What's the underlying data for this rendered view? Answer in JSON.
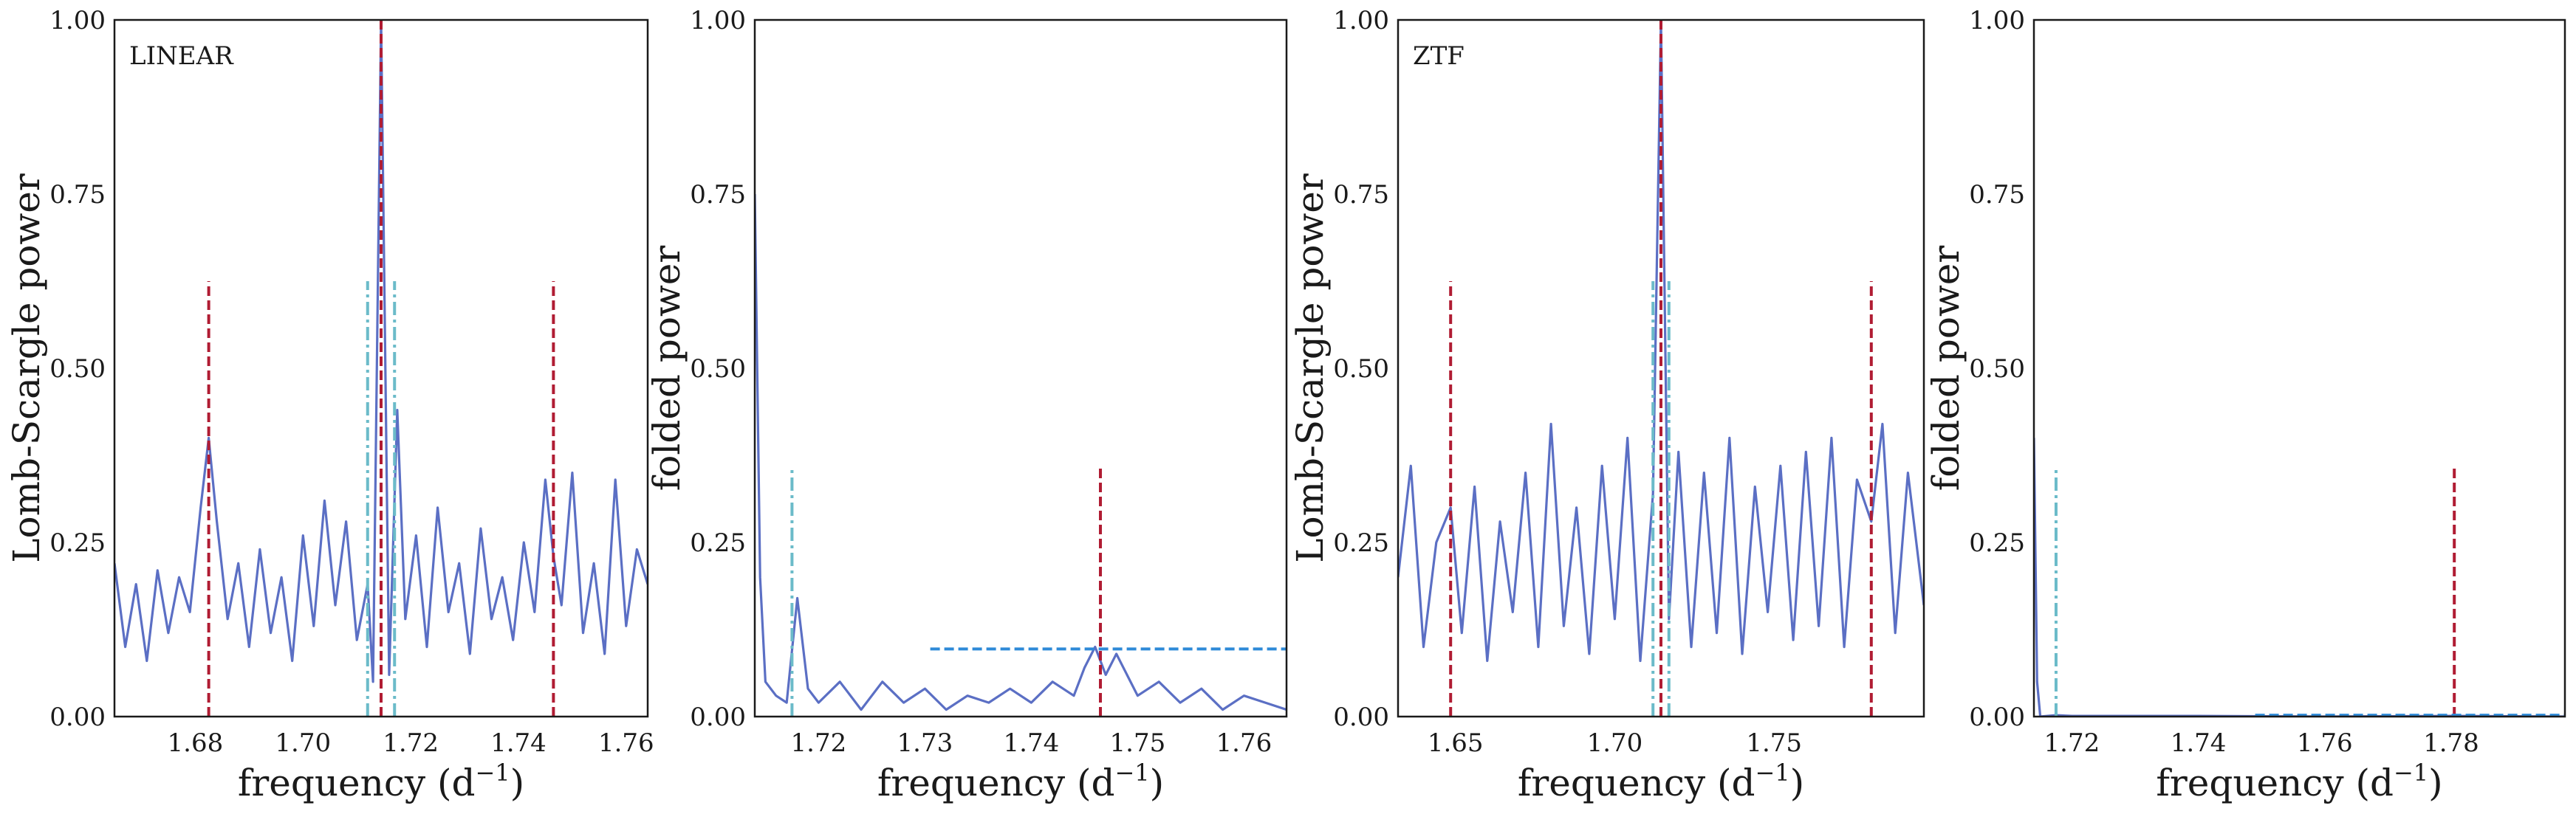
{
  "chart_data": [
    {
      "type": "line",
      "annotation": "LINEAR",
      "xlabel": "frequency (d",
      "xlabel_sup": "−1",
      "xlabel_end": ")",
      "ylabel": "Lomb-Scargle power",
      "xlim": [
        1.665,
        1.764
      ],
      "ylim": [
        0,
        1
      ],
      "xticks": [
        1.68,
        1.7,
        1.72,
        1.74,
        1.76
      ],
      "xtick_labels": [
        "1.68",
        "1.70",
        "1.72",
        "1.74",
        "1.76"
      ],
      "yticks": [
        0,
        0.25,
        0.5,
        0.75,
        1.0
      ],
      "ytick_labels": [
        "0.00",
        "0.25",
        "0.50",
        "0.75",
        "1.00"
      ],
      "series": [
        {
          "color": "#5b6fc4",
          "x": [
            1.665,
            1.667,
            1.669,
            1.671,
            1.673,
            1.675,
            1.677,
            1.679,
            1.681,
            1.6825,
            1.684,
            1.686,
            1.688,
            1.69,
            1.692,
            1.694,
            1.696,
            1.698,
            1.7,
            1.702,
            1.704,
            1.706,
            1.708,
            1.71,
            1.712,
            1.713,
            1.7145,
            1.716,
            1.7175,
            1.719,
            1.721,
            1.723,
            1.725,
            1.727,
            1.729,
            1.731,
            1.733,
            1.735,
            1.737,
            1.739,
            1.741,
            1.743,
            1.745,
            1.7465,
            1.748,
            1.75,
            1.752,
            1.754,
            1.756,
            1.758,
            1.76,
            1.762,
            1.764
          ],
          "y": [
            0.22,
            0.1,
            0.19,
            0.08,
            0.21,
            0.12,
            0.2,
            0.15,
            0.3,
            0.4,
            0.28,
            0.14,
            0.22,
            0.1,
            0.24,
            0.12,
            0.2,
            0.08,
            0.26,
            0.13,
            0.31,
            0.16,
            0.28,
            0.11,
            0.19,
            0.05,
            1.0,
            0.06,
            0.44,
            0.14,
            0.26,
            0.1,
            0.3,
            0.15,
            0.22,
            0.09,
            0.27,
            0.14,
            0.2,
            0.11,
            0.25,
            0.15,
            0.34,
            0.23,
            0.16,
            0.35,
            0.12,
            0.22,
            0.09,
            0.34,
            0.13,
            0.24,
            0.19
          ]
        }
      ],
      "vlines": [
        {
          "x": 1.6825,
          "ymax": 0.625,
          "color": "#b01c33",
          "style": "dashed"
        },
        {
          "x": 1.7145,
          "ymax": 1.0,
          "color": "#b01c33",
          "style": "dashed"
        },
        {
          "x": 1.7465,
          "ymax": 0.625,
          "color": "#b01c33",
          "style": "dashed"
        },
        {
          "x": 1.712,
          "ymax": 0.625,
          "color": "#6bbbc9",
          "style": "dashdot"
        },
        {
          "x": 1.717,
          "ymax": 0.625,
          "color": "#6bbbc9",
          "style": "dashdot"
        }
      ],
      "hlines": []
    },
    {
      "type": "line",
      "annotation": "",
      "xlabel": "frequency (d",
      "xlabel_sup": "−1",
      "xlabel_end": ")",
      "ylabel": "folded power",
      "xlim": [
        1.714,
        1.764
      ],
      "ylim": [
        0,
        1
      ],
      "xticks": [
        1.72,
        1.73,
        1.74,
        1.75,
        1.76
      ],
      "xtick_labels": [
        "1.72",
        "1.73",
        "1.74",
        "1.75",
        "1.76"
      ],
      "yticks": [
        0,
        0.25,
        0.5,
        0.75,
        1.0
      ],
      "ytick_labels": [
        "0.00",
        "0.25",
        "0.50",
        "0.75",
        "1.00"
      ],
      "series": [
        {
          "color": "#5b6fc4",
          "x": [
            1.714,
            1.7145,
            1.715,
            1.716,
            1.717,
            1.718,
            1.719,
            1.72,
            1.722,
            1.724,
            1.726,
            1.728,
            1.73,
            1.732,
            1.734,
            1.736,
            1.738,
            1.74,
            1.742,
            1.744,
            1.745,
            1.746,
            1.747,
            1.748,
            1.75,
            1.752,
            1.754,
            1.756,
            1.758,
            1.76,
            1.762,
            1.764
          ],
          "y": [
            0.75,
            0.2,
            0.05,
            0.03,
            0.02,
            0.17,
            0.04,
            0.02,
            0.05,
            0.01,
            0.05,
            0.02,
            0.04,
            0.01,
            0.03,
            0.02,
            0.04,
            0.02,
            0.05,
            0.03,
            0.07,
            0.1,
            0.06,
            0.09,
            0.03,
            0.05,
            0.02,
            0.04,
            0.01,
            0.03,
            0.02,
            0.01
          ]
        }
      ],
      "vlines": [
        {
          "x": 1.7465,
          "ymax": 0.36,
          "color": "#b01c33",
          "style": "dashed"
        },
        {
          "x": 1.7175,
          "ymax": 0.36,
          "color": "#6bbbc9",
          "style": "dashdot"
        }
      ],
      "hlines": [
        {
          "y": 0.097,
          "xmin": 1.7305,
          "xmax": 1.764,
          "color": "#2e8ad8",
          "style": "dashed"
        }
      ]
    },
    {
      "type": "line",
      "annotation": "ZTF",
      "xlabel": "frequency (d",
      "xlabel_sup": "−1",
      "xlabel_end": ")",
      "ylabel": "Lomb-Scargle power",
      "xlim": [
        1.632,
        1.797
      ],
      "ylim": [
        0,
        1
      ],
      "xticks": [
        1.65,
        1.7,
        1.75
      ],
      "xtick_labels": [
        "1.65",
        "1.70",
        "1.75"
      ],
      "yticks": [
        0,
        0.25,
        0.5,
        0.75,
        1.0
      ],
      "ytick_labels": [
        "0.00",
        "0.25",
        "0.50",
        "0.75",
        "1.00"
      ],
      "series": [
        {
          "color": "#5b6fc4",
          "x": [
            1.632,
            1.636,
            1.64,
            1.644,
            1.6485,
            1.652,
            1.656,
            1.66,
            1.664,
            1.668,
            1.672,
            1.676,
            1.68,
            1.684,
            1.688,
            1.692,
            1.696,
            1.7,
            1.704,
            1.708,
            1.712,
            1.7145,
            1.717,
            1.72,
            1.724,
            1.728,
            1.732,
            1.736,
            1.74,
            1.744,
            1.748,
            1.752,
            1.756,
            1.76,
            1.764,
            1.768,
            1.772,
            1.776,
            1.7805,
            1.784,
            1.788,
            1.792,
            1.797
          ],
          "y": [
            0.2,
            0.36,
            0.1,
            0.25,
            0.3,
            0.12,
            0.33,
            0.08,
            0.28,
            0.15,
            0.35,
            0.1,
            0.42,
            0.13,
            0.3,
            0.09,
            0.36,
            0.14,
            0.4,
            0.08,
            0.32,
            1.0,
            0.14,
            0.38,
            0.1,
            0.35,
            0.12,
            0.4,
            0.09,
            0.33,
            0.15,
            0.36,
            0.11,
            0.38,
            0.13,
            0.4,
            0.1,
            0.34,
            0.28,
            0.42,
            0.12,
            0.35,
            0.16
          ]
        }
      ],
      "vlines": [
        {
          "x": 1.6485,
          "ymax": 0.625,
          "color": "#b01c33",
          "style": "dashed"
        },
        {
          "x": 1.7145,
          "ymax": 1.0,
          "color": "#b01c33",
          "style": "dashed"
        },
        {
          "x": 1.7805,
          "ymax": 0.625,
          "color": "#b01c33",
          "style": "dashed"
        },
        {
          "x": 1.712,
          "ymax": 0.625,
          "color": "#6bbbc9",
          "style": "dashdot"
        },
        {
          "x": 1.717,
          "ymax": 0.625,
          "color": "#6bbbc9",
          "style": "dashdot"
        }
      ],
      "hlines": []
    },
    {
      "type": "line",
      "annotation": "",
      "xlabel": "frequency (d",
      "xlabel_sup": "−1",
      "xlabel_end": ")",
      "ylabel": "folded power",
      "xlim": [
        1.714,
        1.798
      ],
      "ylim": [
        0,
        1
      ],
      "xticks": [
        1.72,
        1.74,
        1.76,
        1.78
      ],
      "xtick_labels": [
        "1.72",
        "1.74",
        "1.76",
        "1.78"
      ],
      "yticks": [
        0,
        0.25,
        0.5,
        0.75,
        1.0
      ],
      "ytick_labels": [
        "0.00",
        "0.25",
        "0.50",
        "0.75",
        "1.00"
      ],
      "series": [
        {
          "color": "#5b6fc4",
          "x": [
            1.714,
            1.7145,
            1.715,
            1.7175,
            1.72,
            1.74,
            1.76,
            1.78,
            1.798
          ],
          "y": [
            0.4,
            0.05,
            0.0,
            0.002,
            0.001,
            0.001,
            0.0,
            0.001,
            0.0
          ]
        }
      ],
      "vlines": [
        {
          "x": 1.7805,
          "ymax": 0.36,
          "color": "#b01c33",
          "style": "dashed"
        },
        {
          "x": 1.7175,
          "ymax": 0.36,
          "color": "#6bbbc9",
          "style": "dashdot"
        }
      ],
      "hlines": [
        {
          "y": 0.002,
          "xmin": 1.749,
          "xmax": 1.798,
          "color": "#2e8ad8",
          "style": "dashed"
        }
      ]
    }
  ]
}
